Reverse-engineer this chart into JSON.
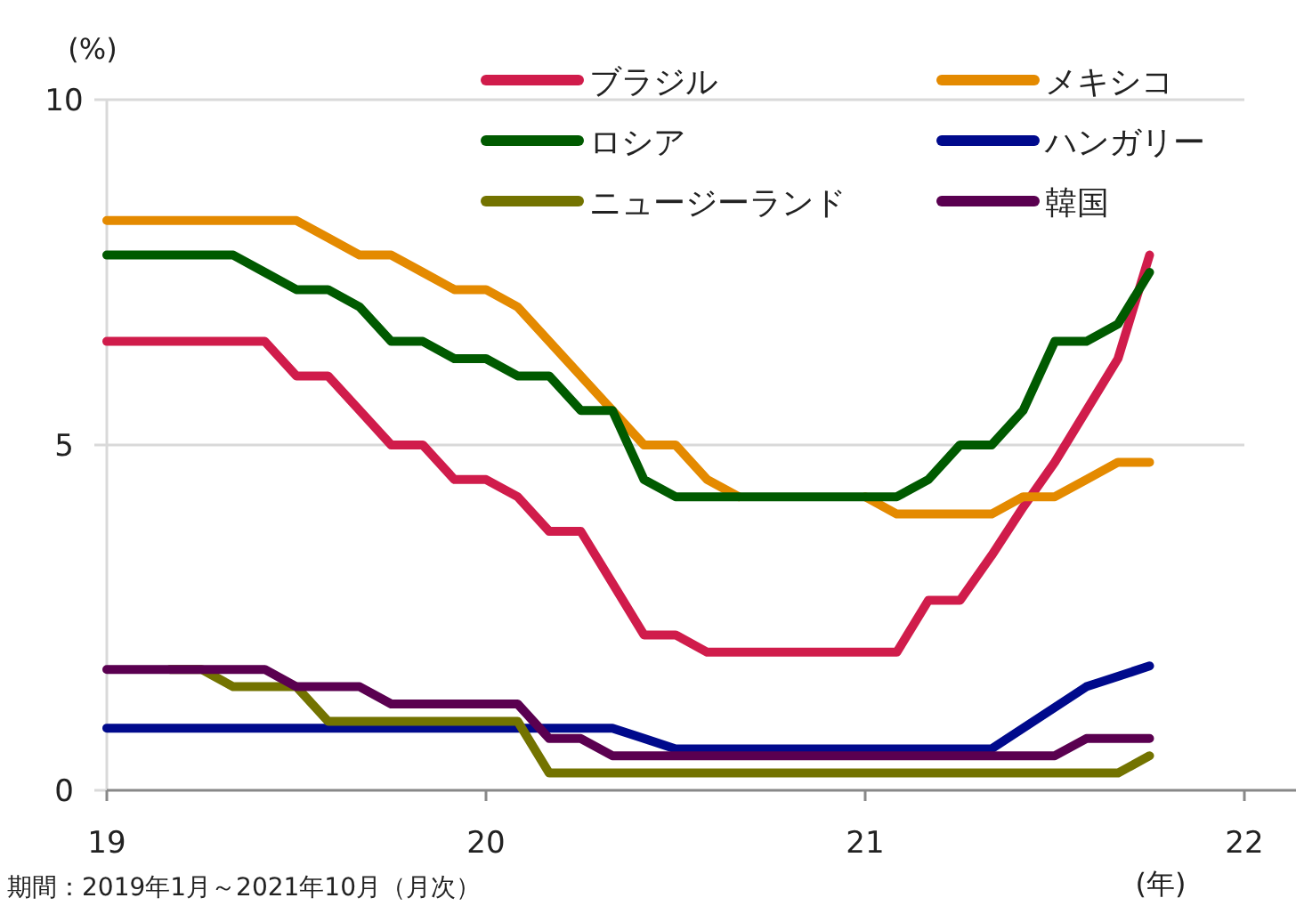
{
  "chart_data": {
    "type": "line",
    "ylabel": "(%)",
    "xlabel": "(年)",
    "annotations": [
      "期間：2019年1月～2021年10月（月次）"
    ],
    "x": [
      "2019-01",
      "2019-02",
      "2019-03",
      "2019-04",
      "2019-05",
      "2019-06",
      "2019-07",
      "2019-08",
      "2019-09",
      "2019-10",
      "2019-11",
      "2019-12",
      "2020-01",
      "2020-02",
      "2020-03",
      "2020-04",
      "2020-05",
      "2020-06",
      "2020-07",
      "2020-08",
      "2020-09",
      "2020-10",
      "2020-11",
      "2020-12",
      "2021-01",
      "2021-02",
      "2021-03",
      "2021-04",
      "2021-05",
      "2021-06",
      "2021-07",
      "2021-08",
      "2021-09",
      "2021-10"
    ],
    "xlim": [
      "2019-01",
      "2022-01"
    ],
    "xticks": [
      {
        "value": "2019-01",
        "label": "19"
      },
      {
        "value": "2020-01",
        "label": "20"
      },
      {
        "value": "2021-01",
        "label": "21"
      },
      {
        "value": "2022-01",
        "label": "22"
      }
    ],
    "ylim": [
      0,
      10
    ],
    "yticks": [
      0,
      5,
      10
    ],
    "grid": "y",
    "legend": "top right",
    "series": [
      {
        "name": "ブラジル",
        "color": "#d01c4b",
        "values": [
          6.5,
          6.5,
          6.5,
          6.5,
          6.5,
          6.5,
          6.0,
          6.0,
          5.5,
          5.0,
          5.0,
          4.5,
          4.5,
          4.25,
          3.75,
          3.75,
          3.0,
          2.25,
          2.25,
          2.0,
          2.0,
          2.0,
          2.0,
          2.0,
          2.0,
          2.0,
          2.75,
          2.75,
          3.4,
          4.1,
          4.75,
          5.5,
          6.25,
          7.75
        ]
      },
      {
        "name": "メキシコ",
        "color": "#e48a00",
        "values": [
          8.25,
          8.25,
          8.25,
          8.25,
          8.25,
          8.25,
          8.25,
          8.0,
          7.75,
          7.75,
          7.5,
          7.25,
          7.25,
          7.0,
          6.5,
          6.0,
          5.5,
          5.0,
          5.0,
          4.5,
          4.25,
          null,
          null,
          null,
          4.25,
          4.0,
          4.0,
          4.0,
          4.0,
          4.25,
          4.25,
          4.5,
          4.75,
          4.75
        ]
      },
      {
        "name": "ロシア",
        "color": "#005a00",
        "values": [
          7.75,
          7.75,
          7.75,
          7.75,
          7.75,
          7.5,
          7.25,
          7.25,
          7.0,
          6.5,
          6.5,
          6.25,
          6.25,
          6.0,
          6.0,
          5.5,
          5.5,
          4.5,
          4.25,
          4.25,
          4.25,
          4.25,
          4.25,
          4.25,
          4.25,
          4.25,
          4.5,
          5.0,
          5.0,
          5.5,
          6.5,
          6.5,
          6.75,
          7.5
        ]
      },
      {
        "name": "ハンガリー",
        "color": "#000a8c",
        "values": [
          0.9,
          0.9,
          0.9,
          0.9,
          0.9,
          0.9,
          0.9,
          0.9,
          0.9,
          0.9,
          0.9,
          0.9,
          0.9,
          0.9,
          0.9,
          0.9,
          0.9,
          0.75,
          0.6,
          0.6,
          0.6,
          0.6,
          0.6,
          0.6,
          0.6,
          0.6,
          0.6,
          0.6,
          0.6,
          0.9,
          1.2,
          1.5,
          1.65,
          1.8
        ]
      },
      {
        "name": "ニュージーランド",
        "color": "#737300",
        "values": [
          null,
          null,
          1.75,
          1.75,
          1.5,
          1.5,
          1.5,
          1.0,
          1.0,
          1.0,
          1.0,
          1.0,
          1.0,
          1.0,
          0.25,
          0.25,
          0.25,
          0.25,
          0.25,
          0.25,
          0.25,
          0.25,
          0.25,
          0.25,
          0.25,
          0.25,
          0.25,
          0.25,
          0.25,
          0.25,
          0.25,
          0.25,
          0.25,
          0.5
        ]
      },
      {
        "name": "韓国",
        "color": "#5a0050",
        "values": [
          1.75,
          1.75,
          1.75,
          1.75,
          1.75,
          1.75,
          1.5,
          1.5,
          1.5,
          1.25,
          1.25,
          1.25,
          1.25,
          1.25,
          0.75,
          0.75,
          0.5,
          0.5,
          0.5,
          0.5,
          0.5,
          0.5,
          0.5,
          0.5,
          0.5,
          0.5,
          0.5,
          0.5,
          0.5,
          0.5,
          0.5,
          0.75,
          0.75,
          0.75
        ]
      }
    ]
  }
}
